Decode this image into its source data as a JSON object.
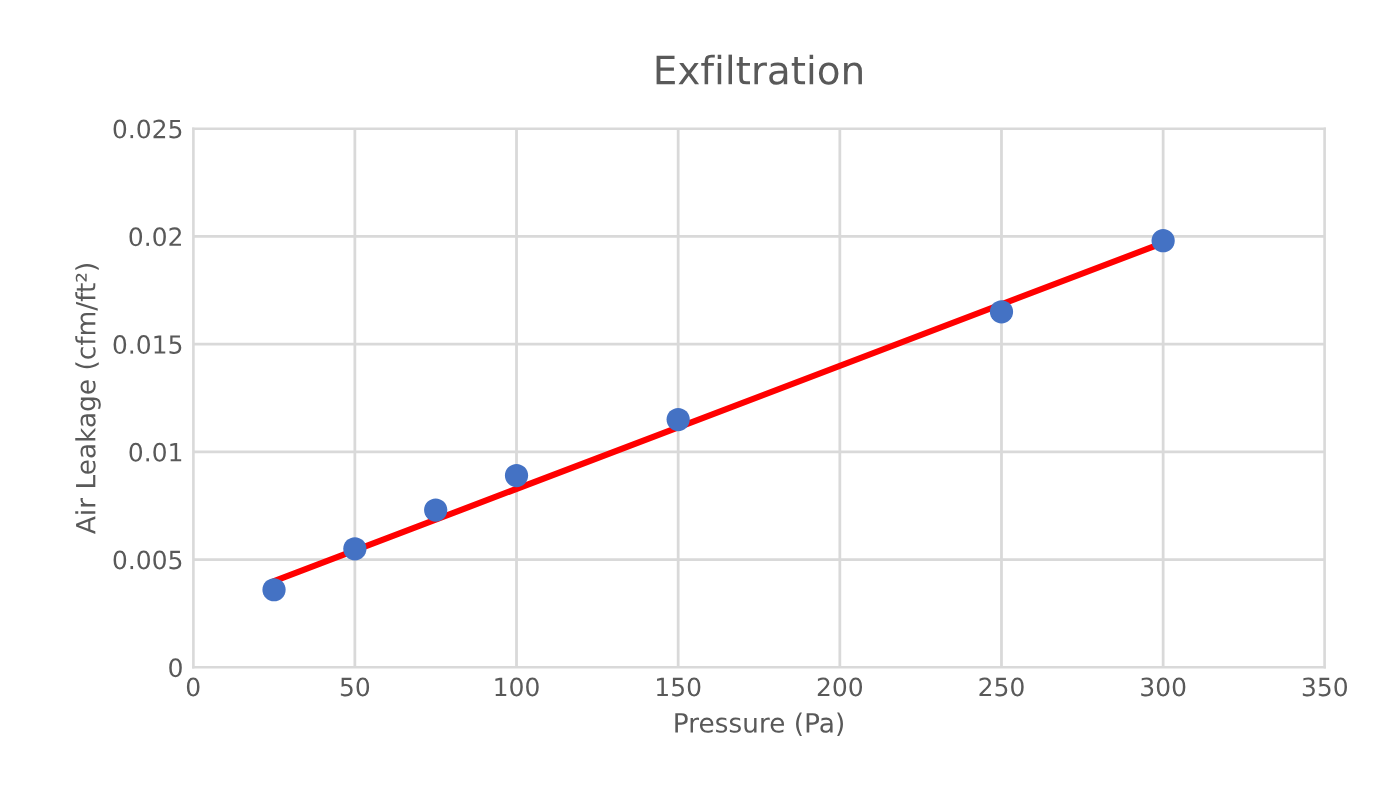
{
  "chart_data": {
    "type": "scatter",
    "title": "Exfiltration",
    "xlabel": "Pressure (Pa)",
    "ylabel": "Air Leakage (cfm/ft²)",
    "series": [
      {
        "color": "#4472c4",
        "marker": "circle",
        "x": [
          25,
          50,
          75,
          100,
          150,
          250,
          300
        ],
        "values": [
          0.0036,
          0.0055,
          0.0073,
          0.0089,
          0.0115,
          0.0165,
          0.0198
        ]
      },
      {
        "type": "line",
        "color": "#ff0000",
        "x": [
          25,
          300
        ],
        "values": [
          0.004,
          0.0197
        ]
      }
    ],
    "xlim": [
      0,
      350
    ],
    "xticks": [
      0,
      50,
      100,
      150,
      200,
      250,
      300,
      350
    ],
    "ylim": [
      0,
      0.025
    ],
    "yticks": [
      {
        "value": 0,
        "label": "0"
      },
      {
        "value": 0.005,
        "label": "0.005"
      },
      {
        "value": 0.01,
        "label": "0.01"
      },
      {
        "value": 0.015,
        "label": "0.015"
      },
      {
        "value": 0.02,
        "label": "0.02"
      },
      {
        "value": 0.025,
        "label": "0.025"
      }
    ],
    "grid": true
  }
}
